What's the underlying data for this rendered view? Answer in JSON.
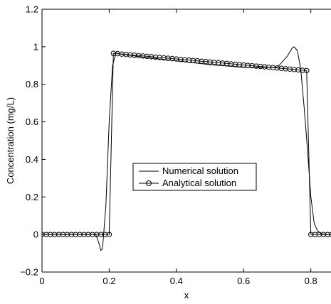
{
  "chart_data": {
    "type": "line",
    "xlabel": "x",
    "ylabel": "Concentration (mg/L)",
    "xlim": [
      0,
      0.86
    ],
    "ylim": [
      -0.2,
      1.2
    ],
    "xticks": [
      0,
      0.2,
      0.4,
      0.6,
      0.8
    ],
    "xtick_labels": [
      "0",
      "0.2",
      "0.4",
      "0.6",
      "0.8"
    ],
    "yticks": [
      -0.2,
      0,
      0.2,
      0.4,
      0.6,
      0.8,
      1,
      1.2
    ],
    "ytick_labels": [
      "−0.2",
      "0",
      "0.2",
      "0.4",
      "0.6",
      "0.8",
      "1",
      "1.2"
    ],
    "grid": false,
    "legend_position": "center",
    "series": [
      {
        "name": "Numerical solution",
        "style": "line",
        "color": "#000000",
        "x": [
          0,
          0.16,
          0.17,
          0.175,
          0.18,
          0.19,
          0.2,
          0.21,
          0.22,
          0.3,
          0.4,
          0.5,
          0.6,
          0.7,
          0.73,
          0.745,
          0.75,
          0.755,
          0.76,
          0.77,
          0.78,
          0.79,
          0.8,
          0.81,
          0.82,
          0.83,
          0.84,
          0.86
        ],
        "y": [
          0,
          0,
          -0.05,
          -0.085,
          -0.075,
          0.15,
          0.6,
          0.9,
          0.965,
          0.945,
          0.925,
          0.905,
          0.89,
          0.89,
          0.95,
          0.995,
          1.0,
          0.99,
          0.98,
          0.88,
          0.68,
          0.45,
          0.2,
          0.06,
          0.02,
          0.005,
          0,
          0
        ]
      },
      {
        "name": "Analytical solution",
        "style": "line-circle",
        "color": "#000000",
        "x": [
          0,
          0.0125,
          0.025,
          0.0375,
          0.05,
          0.0625,
          0.075,
          0.0875,
          0.1,
          0.1125,
          0.125,
          0.1375,
          0.15,
          0.1625,
          0.175,
          0.1875,
          0.2,
          0.2125,
          0.225,
          0.2375,
          0.25,
          0.2625,
          0.275,
          0.2875,
          0.3,
          0.3125,
          0.325,
          0.3375,
          0.35,
          0.3625,
          0.375,
          0.3875,
          0.4,
          0.4125,
          0.425,
          0.4375,
          0.45,
          0.4625,
          0.475,
          0.4875,
          0.5,
          0.5125,
          0.525,
          0.5375,
          0.55,
          0.5625,
          0.575,
          0.5875,
          0.6,
          0.6125,
          0.625,
          0.6375,
          0.65,
          0.6625,
          0.675,
          0.6875,
          0.7,
          0.7125,
          0.725,
          0.7375,
          0.75,
          0.7625,
          0.775,
          0.7875,
          0.8,
          0.8125,
          0.825,
          0.8375,
          0.85,
          0.8625
        ],
        "y": [
          0,
          0,
          0,
          0,
          0,
          0,
          0,
          0,
          0,
          0,
          0,
          0,
          0,
          0,
          0,
          0,
          0,
          0.965,
          0.963,
          0.961,
          0.959,
          0.957,
          0.955,
          0.953,
          0.951,
          0.949,
          0.947,
          0.945,
          0.943,
          0.941,
          0.939,
          0.937,
          0.935,
          0.933,
          0.931,
          0.929,
          0.927,
          0.925,
          0.923,
          0.921,
          0.919,
          0.917,
          0.915,
          0.913,
          0.911,
          0.909,
          0.907,
          0.905,
          0.903,
          0.901,
          0.899,
          0.897,
          0.895,
          0.893,
          0.891,
          0.889,
          0.887,
          0.885,
          0.883,
          0.881,
          0.879,
          0.877,
          0.875,
          0.873,
          0,
          0,
          0,
          0,
          0,
          0
        ]
      }
    ]
  }
}
